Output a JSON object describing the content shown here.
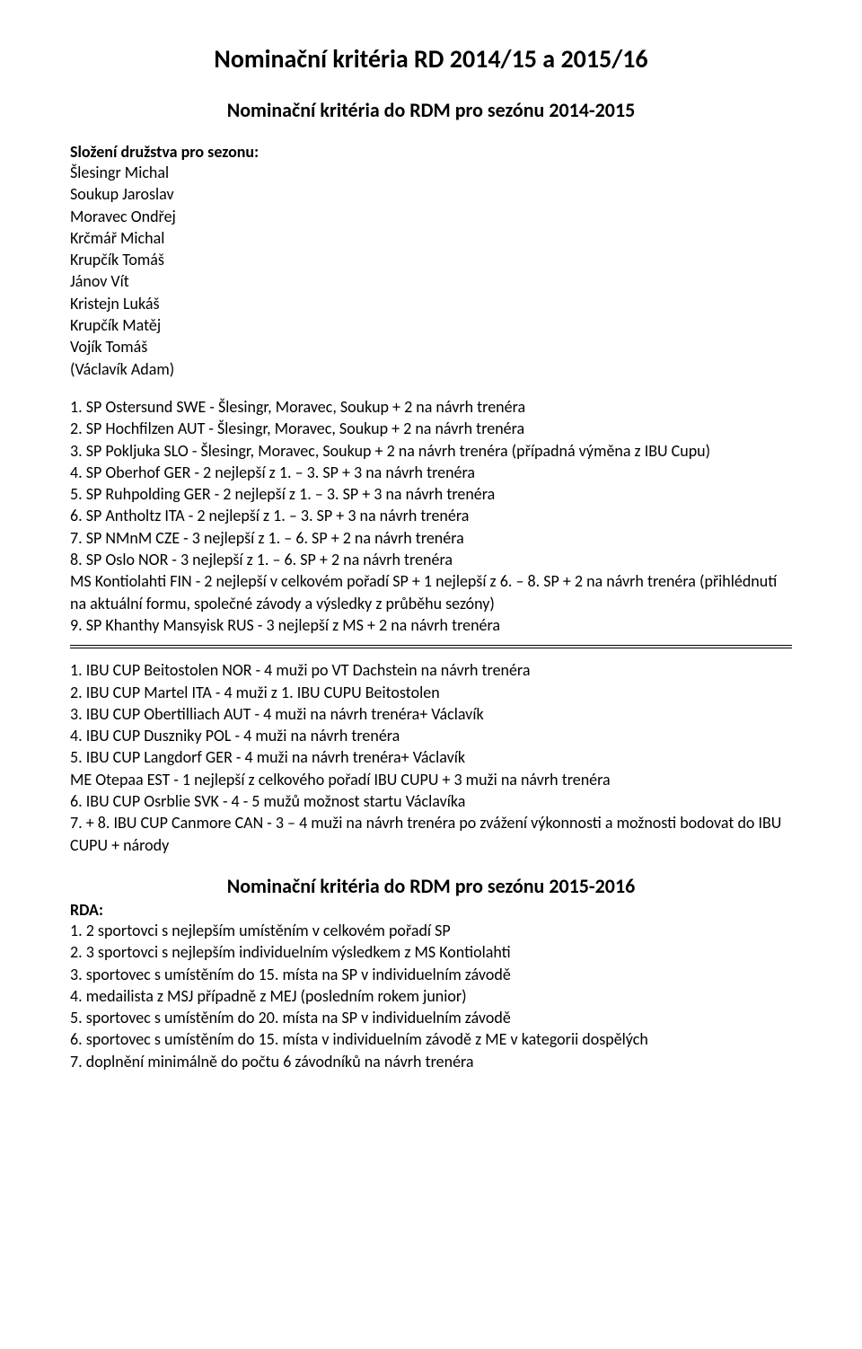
{
  "main_title": "Nominační kritéria RD 2014/15 a 2015/16",
  "subtitle1": "Nominační kritéria do RDM pro sezónu 2014-2015",
  "roster_label": "Složení družstva pro sezonu:",
  "roster": [
    "Šlesingr Michal",
    "Soukup Jaroslav",
    "Moravec Ondřej",
    "Krčmář Michal",
    "Krupčík Tomáš",
    "Jánov Vít",
    "Kristejn Lukáš",
    "Krupčík  Matěj",
    "Vojík Tomáš",
    "(Václavík Adam)"
  ],
  "list1": [
    "1. SP Ostersund SWE - Šlesingr, Moravec, Soukup + 2 na návrh trenéra",
    "2. SP Hochfilzen AUT - Šlesingr, Moravec, Soukup + 2 na návrh trenéra",
    "3. SP Pokljuka SLO - Šlesingr, Moravec, Soukup + 2 na návrh trenéra  (případná výměna z IBU Cupu)",
    "4. SP Oberhof GER - 2 nejlepší z 1. – 3. SP + 3 na návrh trenéra",
    "5. SP Ruhpolding GER - 2 nejlepší z 1. – 3. SP + 3 na návrh trenéra",
    "6. SP Antholtz  ITA - 2 nejlepší z 1. – 3. SP + 3 na návrh trenéra",
    "7. SP NMnM  CZE - 3 nejlepší z 1. – 6. SP + 2 na návrh trenéra",
    "8. SP Oslo NOR -  3 nejlepší z 1. – 6. SP + 2 na návrh trenéra",
    "MS Kontiolahti FIN  -  2 nejlepší v celkovém pořadí SP + 1 nejlepší z 6. – 8. SP + 2 na návrh trenéra     (přihlédnutí na aktuální formu, společné závody a výsledky z průběhu sezóny)",
    "9. SP Khanthy Mansyisk RUS -  3 nejlepší z MS + 2 na návrh trenéra"
  ],
  "list2": [
    "1. IBU CUP Beitostolen NOR - 4 muži po VT Dachstein na návrh trenéra",
    "2. IBU CUP Martel  ITA - 4 muži z 1. IBU CUPU Beitostolen",
    "3. IBU CUP Obertilliach  AUT - 4 muži na návrh trenéra+ Václavík",
    "4. IBU CUP Duszniky   POL - 4 muži na návrh trenéra",
    "5. IBU CUP Langdorf  GER - 4 muži na návrh trenéra+ Václavík",
    "ME  Otepaa  EST - 1 nejlepší z celkového pořadí IBU CUPU + 3 muži na návrh trenéra",
    "6. IBU CUP Osrblie SVK - 4 - 5 mužů možnost startu Václavíka",
    "7. + 8. IBU CUP Canmore CAN - 3 – 4 muži na návrh trenéra po zvážení výkonnosti a možnosti bodovat do IBU CUPU + národy"
  ],
  "subtitle2": "Nominační kritéria do RDM pro sezónu 2015-2016",
  "rda_label": "RDA:",
  "list3": [
    "1. 2 sportovci s nejlepším umístěním v celkovém pořadí SP",
    "2. 3 sportovci s nejlepším individuelním výsledkem z MS Kontiolahti",
    "3. sportovec s umístěním do 15. místa na SP v individuelním závodě",
    "4. medailista z MSJ případně z MEJ (posledním rokem junior)",
    "5. sportovec s umístěním do 20. místa na SP v individuelním závodě",
    "6. sportovec s umístěním do 15. místa v individuelním závodě z ME v kategorii dospělých",
    "7. doplnění minimálně do počtu 6 závodníků na návrh trenéra"
  ]
}
